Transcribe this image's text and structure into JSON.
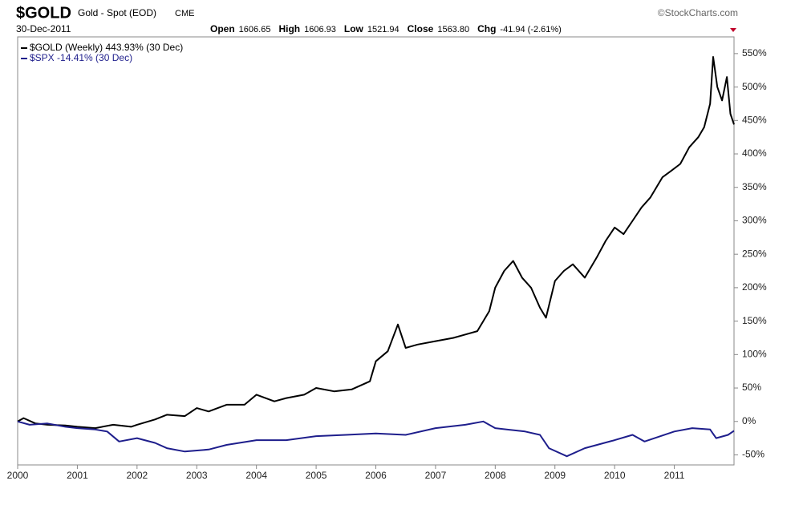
{
  "header": {
    "symbol": "$GOLD",
    "name": "Gold - Spot (EOD)",
    "exchange": "CME",
    "source": "©StockCharts.com",
    "date": "30-Dec-2011",
    "quote": [
      {
        "label": "Open",
        "value": "1606.65"
      },
      {
        "label": "High",
        "value": "1606.93"
      },
      {
        "label": "Low",
        "value": "1521.94"
      },
      {
        "label": "Close",
        "value": "1563.80"
      },
      {
        "label": "Chg",
        "value": "-41.94 (-2.61%)"
      }
    ]
  },
  "chart_data": {
    "type": "line",
    "xlim": [
      2000,
      2012
    ],
    "xticks": [
      2000,
      2001,
      2002,
      2003,
      2004,
      2005,
      2006,
      2007,
      2008,
      2009,
      2010,
      2011
    ],
    "ylim": [
      -65,
      575
    ],
    "yticks": [
      {
        "value": -50,
        "label": "-50%"
      },
      {
        "value": 0,
        "label": "0%"
      },
      {
        "value": 50,
        "label": "50%"
      },
      {
        "value": 100,
        "label": "100%"
      },
      {
        "value": 150,
        "label": "150%"
      },
      {
        "value": 200,
        "label": "200%"
      },
      {
        "value": 250,
        "label": "250%"
      },
      {
        "value": 300,
        "label": "300%"
      },
      {
        "value": 350,
        "label": "350%"
      },
      {
        "value": 400,
        "label": "400%"
      },
      {
        "value": 450,
        "label": "450%"
      },
      {
        "value": 500,
        "label": "500%"
      },
      {
        "value": 550,
        "label": "550%"
      }
    ],
    "grid": false,
    "series": [
      {
        "name": "$GOLD (Weekly) 443.93% (30 Dec)",
        "color": "#000000",
        "x": [
          2000,
          2000.1,
          2000.3,
          2000.5,
          2000.8,
          2001,
          2001.3,
          2001.6,
          2001.9,
          2002,
          2002.3,
          2002.5,
          2002.8,
          2003,
          2003.2,
          2003.5,
          2003.8,
          2004,
          2004.3,
          2004.5,
          2004.8,
          2005,
          2005.3,
          2005.6,
          2005.9,
          2006,
          2006.2,
          2006.37,
          2006.5,
          2006.7,
          2007,
          2007.3,
          2007.5,
          2007.7,
          2007.9,
          2008,
          2008.15,
          2008.3,
          2008.45,
          2008.6,
          2008.75,
          2008.85,
          2009,
          2009.15,
          2009.3,
          2009.5,
          2009.7,
          2009.85,
          2010,
          2010.15,
          2010.3,
          2010.45,
          2010.6,
          2010.8,
          2010.95,
          2011.1,
          2011.25,
          2011.4,
          2011.5,
          2011.6,
          2011.65,
          2011.72,
          2011.8,
          2011.88,
          2011.94,
          2012
        ],
        "values": [
          0,
          5,
          -3,
          -5,
          -6,
          -8,
          -10,
          -5,
          -8,
          -5,
          3,
          10,
          8,
          20,
          15,
          25,
          25,
          40,
          30,
          35,
          40,
          50,
          45,
          48,
          60,
          90,
          105,
          145,
          110,
          115,
          120,
          125,
          130,
          135,
          165,
          200,
          225,
          240,
          215,
          200,
          170,
          155,
          210,
          225,
          235,
          215,
          245,
          270,
          290,
          280,
          300,
          320,
          335,
          365,
          375,
          385,
          410,
          425,
          440,
          475,
          545,
          500,
          480,
          515,
          460,
          444
        ]
      },
      {
        "name": "$SPX -14.41% (30 Dec)",
        "color": "#1e1e8c",
        "x": [
          2000,
          2000.2,
          2000.5,
          2000.8,
          2001,
          2001.3,
          2001.5,
          2001.7,
          2002,
          2002.3,
          2002.5,
          2002.8,
          2003.2,
          2003.5,
          2004,
          2004.5,
          2005,
          2005.5,
          2006,
          2006.5,
          2007,
          2007.5,
          2007.8,
          2008,
          2008.5,
          2008.75,
          2008.9,
          2009.2,
          2009.5,
          2010,
          2010.3,
          2010.5,
          2011,
          2011.3,
          2011.6,
          2011.7,
          2011.9,
          2012
        ],
        "values": [
          0,
          -5,
          -3,
          -8,
          -10,
          -12,
          -15,
          -30,
          -25,
          -32,
          -40,
          -45,
          -42,
          -35,
          -28,
          -28,
          -22,
          -20,
          -18,
          -20,
          -10,
          -5,
          0,
          -10,
          -15,
          -20,
          -40,
          -52,
          -40,
          -28,
          -20,
          -30,
          -15,
          -10,
          -12,
          -25,
          -20,
          -14
        ]
      }
    ]
  }
}
